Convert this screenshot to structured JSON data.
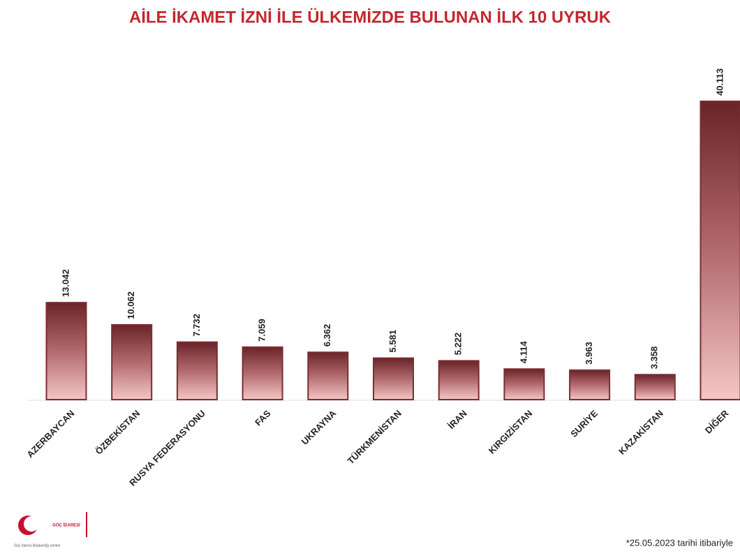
{
  "chart_data": {
    "type": "bar",
    "title": "AİLE İKAMET İZNİ İLE ÜLKEMİZDE BULUNAN İLK 10 UYRUK",
    "categories": [
      "AZERBAYCAN",
      "ÖZBEKİSTAN",
      "RUSYA FEDERASYONU",
      "FAS",
      "UKRAYNA",
      "TÜRKMENİSTAN",
      "İRAN",
      "KIRGIZİSTAN",
      "SURİYE",
      "KAZAKİSTAN",
      "DİĞER"
    ],
    "values": [
      13042,
      10062,
      7732,
      7059,
      6362,
      5581,
      5222,
      4114,
      3963,
      3358,
      40113
    ],
    "value_labels": [
      "13.042",
      "10.062",
      "7.732",
      "7.059",
      "6.362",
      "5.581",
      "5.222",
      "4.114",
      "3.963",
      "3.358",
      "40.113"
    ],
    "color": "#7a2e33",
    "note": "*25.05.2023 tarihi itibariyle",
    "logo_text": "GÖÇ İDARESİ",
    "source": "Göç İdaresi Başkanlığı verileri"
  }
}
